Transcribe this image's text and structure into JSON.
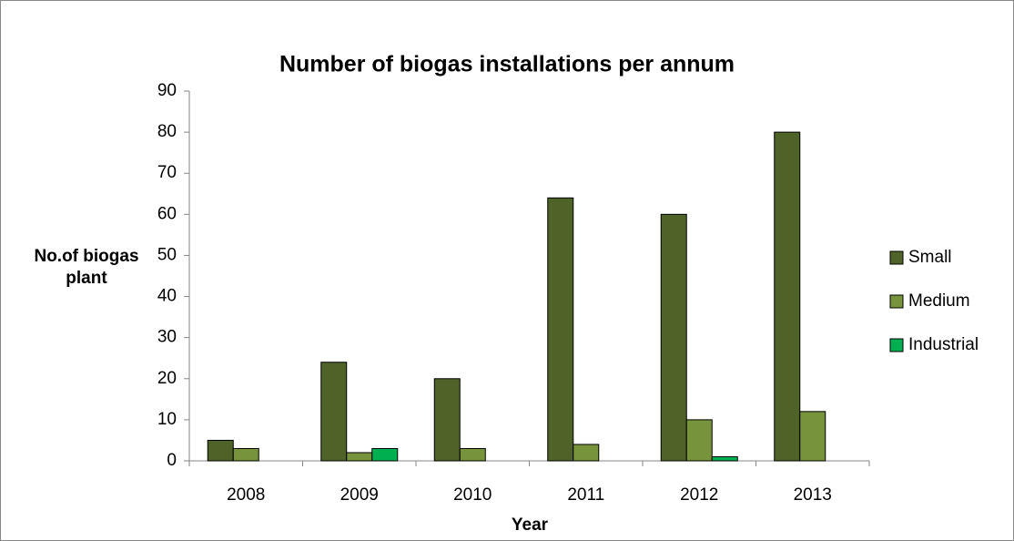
{
  "chart_data": {
    "type": "bar",
    "title": "Number of biogas installations per annum",
    "x_label": "Year",
    "y_label": "No.of biogas plant",
    "categories": [
      "2008",
      "2009",
      "2010",
      "2011",
      "2012",
      "2013"
    ],
    "series": [
      {
        "name": "Small",
        "color": "#4f6228",
        "values": [
          5,
          24,
          20,
          64,
          60,
          80
        ]
      },
      {
        "name": "Medium",
        "color": "#77933c",
        "values": [
          3,
          2,
          3,
          4,
          10,
          12
        ]
      },
      {
        "name": "Industrial",
        "color": "#00b050",
        "values": [
          0,
          3,
          0,
          0,
          1,
          0
        ]
      }
    ],
    "ylim": [
      0,
      90
    ],
    "yticks": [
      0,
      10,
      20,
      30,
      40,
      50,
      60,
      70,
      80,
      90
    ],
    "grid": false,
    "legend": "right"
  }
}
